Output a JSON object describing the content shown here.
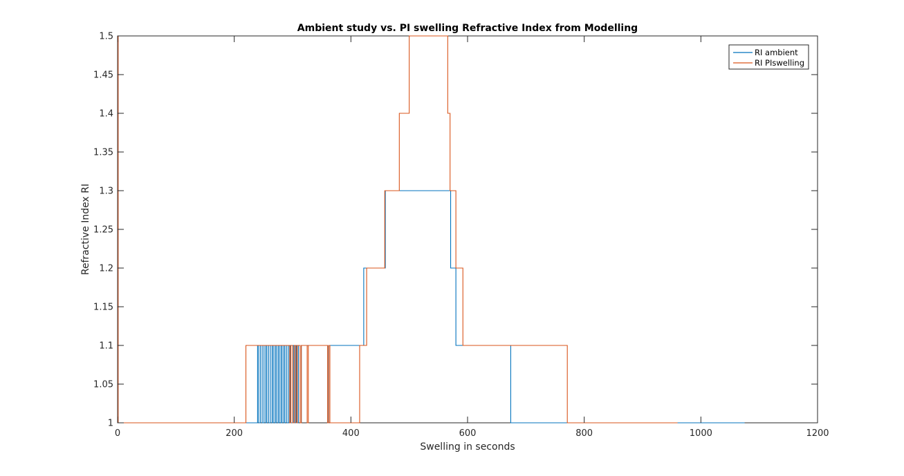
{
  "chart_data": {
    "type": "line",
    "title": "Ambient study vs. PI swelling Refractive Index from Modelling",
    "xlabel": "Swelling in seconds",
    "ylabel": "Refractive Index RI",
    "xlim": [
      0,
      1200
    ],
    "ylim": [
      1,
      1.5
    ],
    "xticks": [
      0,
      200,
      400,
      600,
      800,
      1000,
      1200
    ],
    "xtick_labels": [
      "0",
      "200",
      "400",
      "600",
      "800",
      "1000",
      "1200"
    ],
    "yticks": [
      1,
      1.05,
      1.1,
      1.15,
      1.2,
      1.25,
      1.3,
      1.35,
      1.4,
      1.45,
      1.5
    ],
    "ytick_labels": [
      "1",
      "1.05",
      "1.1",
      "1.15",
      "1.2",
      "1.25",
      "1.3",
      "1.35",
      "1.4",
      "1.45",
      "1.5"
    ],
    "grid": false,
    "legend_position": "top-right",
    "series": [
      {
        "name": "RI ambient",
        "color": "#0072BD",
        "style": "step",
        "segments": [
          [
            0,
            1.5
          ],
          [
            1,
            1.0
          ],
          [
            240,
            1.1
          ],
          [
            242,
            1.0
          ],
          [
            245,
            1.1
          ],
          [
            248,
            1.0
          ],
          [
            251,
            1.1
          ],
          [
            254,
            1.0
          ],
          [
            256,
            1.1
          ],
          [
            259,
            1.0
          ],
          [
            262,
            1.1
          ],
          [
            265,
            1.0
          ],
          [
            267,
            1.1
          ],
          [
            270,
            1.0
          ],
          [
            272,
            1.1
          ],
          [
            275,
            1.0
          ],
          [
            277,
            1.1
          ],
          [
            280,
            1.0
          ],
          [
            282,
            1.1
          ],
          [
            285,
            1.0
          ],
          [
            287,
            1.1
          ],
          [
            290,
            1.0
          ],
          [
            293,
            1.1
          ],
          [
            296,
            1.0
          ],
          [
            300,
            1.1
          ],
          [
            302,
            1.0
          ],
          [
            305,
            1.1
          ],
          [
            307,
            1.0
          ],
          [
            310,
            1.1
          ],
          [
            313,
            1.0
          ],
          [
            315,
            1.1
          ],
          [
            360,
            1.0
          ],
          [
            362,
            1.1
          ],
          [
            422,
            1.2
          ],
          [
            459,
            1.3
          ],
          [
            571,
            1.2
          ],
          [
            580,
            1.1
          ],
          [
            674,
            1.0
          ],
          [
            1075,
            1.0
          ]
        ]
      },
      {
        "name": "RI PIswelling",
        "color": "#D95319",
        "style": "step",
        "segments": [
          [
            0,
            1.5
          ],
          [
            1,
            1.0
          ],
          [
            220,
            1.1
          ],
          [
            295,
            1.0
          ],
          [
            297,
            1.1
          ],
          [
            300,
            1.0
          ],
          [
            303,
            1.1
          ],
          [
            306,
            1.0
          ],
          [
            308,
            1.1
          ],
          [
            313,
            1.0
          ],
          [
            315,
            1.1
          ],
          [
            325,
            1.0
          ],
          [
            327,
            1.1
          ],
          [
            360,
            1.0
          ],
          [
            362,
            1.1
          ],
          [
            364,
            1.0
          ],
          [
            415,
            1.1
          ],
          [
            427,
            1.2
          ],
          [
            458,
            1.3
          ],
          [
            483,
            1.4
          ],
          [
            500,
            1.5
          ],
          [
            566,
            1.4
          ],
          [
            570,
            1.3
          ],
          [
            580,
            1.2
          ],
          [
            592,
            1.1
          ],
          [
            771,
            1.0
          ],
          [
            960,
            1.0
          ]
        ]
      }
    ]
  }
}
